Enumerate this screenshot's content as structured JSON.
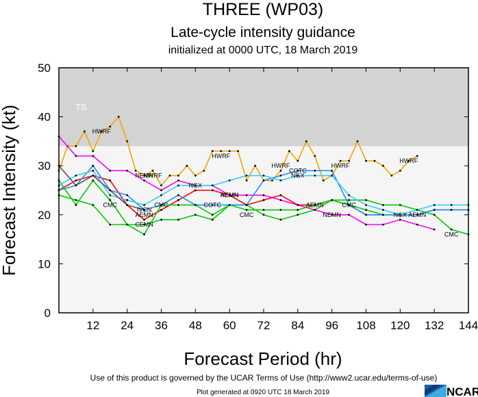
{
  "chart_data": {
    "type": "line",
    "title": "THREE (WP03)",
    "subtitle": "Late-cycle intensity guidance",
    "init_line": "initialized at 0000 UTC, 18 March 2019",
    "xlabel": "Forecast Period (hr)",
    "ylabel": "Forecast Intensity (kt)",
    "xlim": [
      0,
      144
    ],
    "ylim": [
      0,
      50
    ],
    "xticks": [
      12,
      24,
      36,
      48,
      60,
      72,
      84,
      96,
      108,
      120,
      132,
      144
    ],
    "yticks": [
      0,
      10,
      20,
      30,
      40,
      50
    ],
    "shaded_band": {
      "label": "TS",
      "from": 34,
      "to": 50,
      "color": "#d3d3d3"
    },
    "series": [
      {
        "name": "HWRF",
        "color": "#f0a500",
        "x": [
          0,
          3,
          6,
          9,
          12,
          15,
          18,
          21,
          24,
          27,
          30,
          33,
          36,
          39,
          42,
          45,
          48,
          51,
          54,
          57,
          60,
          63,
          66,
          69,
          72,
          75,
          78,
          81,
          84,
          87,
          90,
          93,
          96,
          99,
          102,
          105,
          108,
          111,
          114,
          117,
          120,
          123,
          126
        ],
        "y": [
          29,
          34,
          34,
          37,
          33,
          37,
          38,
          40,
          35,
          29,
          28,
          29,
          26,
          28,
          28,
          30,
          28,
          29,
          33,
          33,
          33,
          33,
          27,
          30,
          27,
          27,
          29,
          33,
          31,
          35,
          32,
          27,
          28,
          31,
          31,
          35,
          31,
          31,
          30,
          28,
          29,
          31,
          32
        ],
        "labels": [
          {
            "x": 15,
            "y": 37
          },
          {
            "x": 33,
            "y": 28
          },
          {
            "x": 57,
            "y": 32
          },
          {
            "x": 78,
            "y": 30
          },
          {
            "x": 99,
            "y": 30
          },
          {
            "x": 123,
            "y": 31
          }
        ]
      },
      {
        "name": "NEMN",
        "color": "#ff00ff",
        "x": [
          0,
          6,
          12,
          18,
          24,
          30,
          36,
          42,
          48,
          54,
          60,
          66,
          72,
          78,
          84,
          90,
          96,
          102,
          108,
          114,
          120,
          126,
          132
        ],
        "y": [
          36,
          32,
          32,
          29,
          29,
          27,
          25,
          27,
          26,
          26,
          24,
          24,
          24,
          23,
          22,
          21,
          20,
          20,
          18,
          18,
          19,
          18,
          17
        ],
        "labels": [
          {
            "x": 30,
            "y": 28
          },
          {
            "x": 60,
            "y": 24
          },
          {
            "x": 96,
            "y": 20
          }
        ]
      },
      {
        "name": "AEMN",
        "color": "#ff0000",
        "x": [
          0,
          6,
          12,
          18,
          24,
          30,
          36,
          42,
          48,
          54,
          60,
          66,
          72,
          78,
          84,
          90,
          96,
          102,
          108,
          114,
          120,
          126,
          132,
          138,
          144
        ],
        "y": [
          25,
          27,
          28,
          27,
          22,
          19,
          21,
          23,
          25,
          25,
          24,
          22,
          23,
          24,
          22,
          22,
          23,
          22,
          20,
          20,
          20,
          20,
          21,
          21,
          21
        ],
        "labels": [
          {
            "x": 30,
            "y": 20
          },
          {
            "x": 60,
            "y": 24
          },
          {
            "x": 90,
            "y": 22
          },
          {
            "x": 126,
            "y": 20
          }
        ]
      },
      {
        "name": "CMC",
        "color": "#00cc00",
        "x": [
          0,
          6,
          12,
          18,
          24,
          30,
          36,
          42,
          48,
          54,
          60,
          66,
          72,
          78,
          84,
          90,
          96,
          102,
          108,
          114,
          120,
          126,
          132,
          138,
          144
        ],
        "y": [
          27,
          22,
          27,
          23,
          18,
          16,
          22,
          22,
          22,
          20,
          22,
          21,
          21,
          21,
          21,
          22,
          23,
          23,
          23,
          22,
          22,
          21,
          20,
          17,
          16
        ],
        "labels": [
          {
            "x": 18,
            "y": 22
          },
          {
            "x": 36,
            "y": 22
          },
          {
            "x": 66,
            "y": 20
          },
          {
            "x": 102,
            "y": 22
          },
          {
            "x": 138,
            "y": 16
          }
        ]
      },
      {
        "name": "CEMN",
        "color": "#00cc00",
        "x": [
          0,
          6,
          12,
          18,
          24,
          30,
          36,
          42,
          48,
          54,
          60,
          66,
          72,
          78,
          84,
          90,
          96,
          102,
          108,
          114,
          120,
          126,
          132,
          138,
          144
        ],
        "y": [
          24,
          23,
          22,
          18,
          18,
          18,
          19,
          19,
          20,
          19,
          22,
          22,
          20,
          19,
          20,
          21,
          23,
          22,
          21,
          20,
          20,
          20,
          21,
          21,
          21
        ],
        "labels": [
          {
            "x": 30,
            "y": 18
          }
        ]
      },
      {
        "name": "COTC",
        "color": "#1e90ff",
        "x": [
          0,
          6,
          12,
          18,
          24,
          30,
          36,
          42,
          48,
          54,
          60,
          66,
          72,
          78,
          84,
          90,
          96,
          102,
          108,
          114,
          120,
          126,
          132,
          138,
          144
        ],
        "y": [
          25,
          26,
          30,
          25,
          24,
          21,
          22,
          24,
          22,
          22,
          22,
          22,
          27,
          28,
          29,
          29,
          29,
          22,
          20,
          20,
          20,
          20,
          21,
          21,
          21
        ],
        "labels": [
          {
            "x": 54,
            "y": 22
          },
          {
            "x": 84,
            "y": 29
          }
        ]
      },
      {
        "name": "NGX",
        "color": "#33ccff",
        "x": [
          0,
          6,
          12,
          18,
          24,
          30,
          36,
          42,
          48,
          54,
          60,
          66,
          72,
          78,
          84,
          90,
          96,
          102,
          108,
          114,
          120,
          126,
          132,
          138,
          144
        ],
        "y": [
          26,
          28,
          29,
          24,
          23,
          22,
          24,
          26,
          26,
          26,
          27,
          28,
          28,
          27,
          28,
          28,
          28,
          24,
          22,
          21,
          20,
          21,
          22,
          22,
          22
        ],
        "labels": [
          {
            "x": 48,
            "y": 26
          },
          {
            "x": 84,
            "y": 28
          },
          {
            "x": 120,
            "y": 20
          }
        ]
      },
      {
        "name": "IVCN",
        "color": "#555555",
        "x": [
          0,
          6,
          12,
          18,
          24,
          30
        ],
        "y": [
          30,
          26,
          28,
          25,
          22,
          21
        ],
        "labels": [
          {
            "x": 30,
            "y": 21
          }
        ]
      }
    ]
  },
  "footer": {
    "terms": "Use of this product is governed by the UCAR Terms of Use (http://www2.ucar.edu/terms-of-use)",
    "generated": "Plot generated at 0920 UTC   18 March 2019",
    "logo_text": "NCAR"
  }
}
